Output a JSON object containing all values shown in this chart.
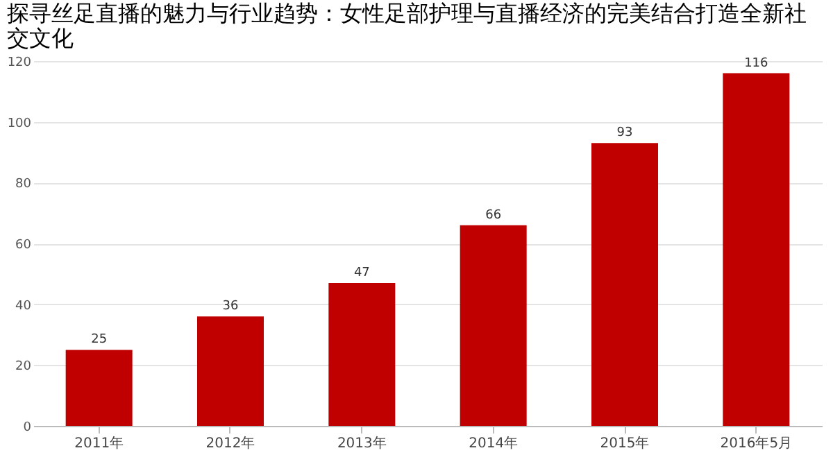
{
  "chart_data": {
    "type": "bar",
    "title": "探寻丝足直播的魅力与行业趋势：女性足部护理与直播经济的完美结合打造全新社交文化",
    "categories": [
      "2011年",
      "2012年",
      "2013年",
      "2014年",
      "2015年",
      "2016年5月"
    ],
    "values": [
      25,
      36,
      47,
      66,
      93,
      116
    ],
    "color": "#c00000",
    "data_labels": true,
    "ylim": [
      0,
      120
    ],
    "yticks": [
      0,
      20,
      40,
      60,
      80,
      100,
      120
    ],
    "grid": "y"
  }
}
